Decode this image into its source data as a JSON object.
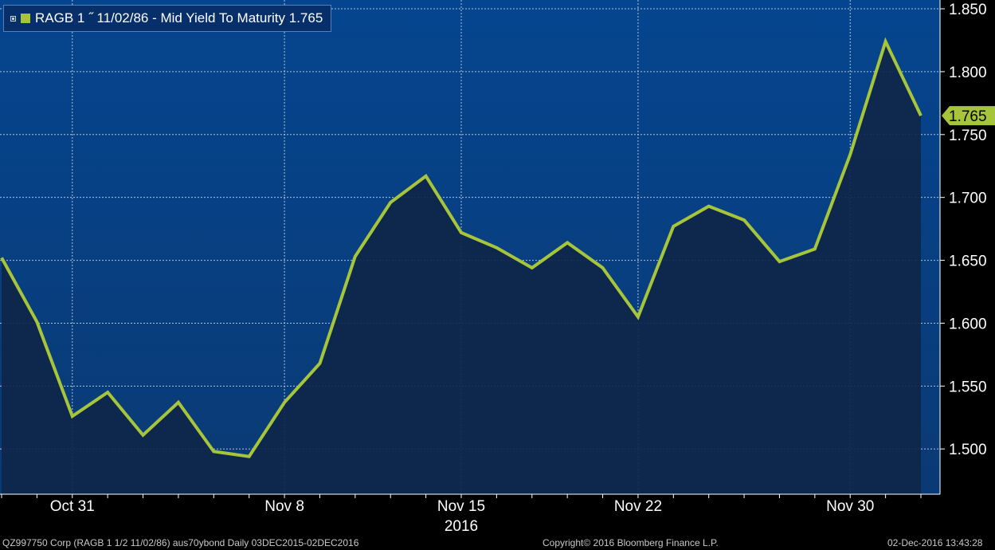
{
  "chart_data": {
    "type": "area",
    "title": "",
    "legend": {
      "label": "RAGB 1 ˝ 11/02/86 - Mid Yield To Maturity 1.765",
      "placement": "top-left"
    },
    "series": [
      {
        "name": "RAGB 1 ˝ 11/02/86 - Mid Yield To Maturity",
        "x": [
          "2016-10-28",
          "2016-10-29",
          "2016-10-31",
          "2016-11-01",
          "2016-11-02",
          "2016-11-03",
          "2016-11-04",
          "2016-11-07",
          "2016-11-08",
          "2016-11-09",
          "2016-11-10",
          "2016-11-11",
          "2016-11-14",
          "2016-11-15",
          "2016-11-16",
          "2016-11-17",
          "2016-11-18",
          "2016-11-21",
          "2016-11-22",
          "2016-11-23",
          "2016-11-24",
          "2016-11-25",
          "2016-11-28",
          "2016-11-29",
          "2016-11-30",
          "2016-12-01",
          "2016-12-02"
        ],
        "values": [
          1.652,
          1.601,
          1.526,
          1.545,
          1.511,
          1.537,
          1.498,
          1.494,
          1.537,
          1.568,
          1.653,
          1.696,
          1.717,
          1.672,
          1.66,
          1.644,
          1.664,
          1.644,
          1.605,
          1.677,
          1.693,
          1.682,
          1.649,
          1.659,
          1.734,
          1.824,
          1.765
        ]
      }
    ],
    "last_value_label": "1.765",
    "xticks": [
      {
        "label": "Oct 31",
        "x": "2016-10-31"
      },
      {
        "label": "Nov 8",
        "x": "2016-11-08"
      },
      {
        "label": "Nov 15",
        "x": "2016-11-15"
      },
      {
        "label": "Nov 22",
        "x": "2016-11-22"
      },
      {
        "label": "Nov 30",
        "x": "2016-11-30"
      }
    ],
    "year_label": "2016",
    "yticks": [
      "1.500",
      "1.550",
      "1.600",
      "1.650",
      "1.700",
      "1.750",
      "1.800",
      "1.850"
    ],
    "ylim": [
      1.464,
      1.857
    ],
    "y_axis_side": "right",
    "grid": true,
    "colors": {
      "line": "#a7c53a",
      "fill": "#0f2649",
      "background_top": "#05458f",
      "background_bottom": "#0a3a74",
      "grid": "#cfd8e6",
      "label_bg": "#a7c53a",
      "label_text": "#000000"
    }
  },
  "footer": {
    "left": "QZ997750 Corp (RAGB 1 1/2 11/02/86) aus70ybond  Daily 03DEC2015-02DEC2016",
    "center": "Copyright© 2016 Bloomberg Finance L.P.",
    "right": "02-Dec-2016 13:43:28"
  }
}
